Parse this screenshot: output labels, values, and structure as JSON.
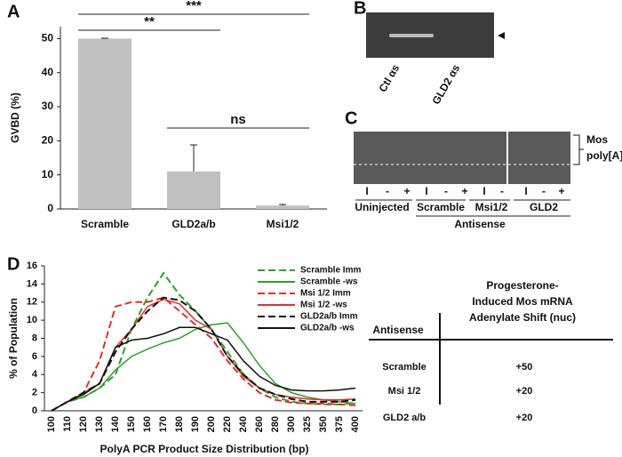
{
  "panel_labels": [
    "A",
    "B",
    "C",
    "D"
  ],
  "chart_data": [
    {
      "type": "bar",
      "ylabel": "GVBD (%)",
      "categories": [
        "Scramble",
        "GLD2a/b",
        "Msi1/2"
      ],
      "values": [
        50,
        11,
        1
      ],
      "errors": [
        0.1,
        7.8,
        0.3
      ],
      "color": "#c0c0c0",
      "ylim": [
        0,
        53.5
      ],
      "yticks": [
        0,
        10,
        20,
        30,
        40,
        50
      ],
      "annotations": [
        "**",
        "***",
        "ns"
      ]
    },
    {
      "type": "line",
      "ylabel": "% of Population",
      "xlabel": "PolyA PCR Product Size Distribution (bp)",
      "categories": [
        "100",
        "110",
        "120",
        "130",
        "140",
        "150",
        "160",
        "170",
        "180",
        "190",
        "200",
        "220",
        "240",
        "260",
        "280",
        "300",
        "325",
        "350",
        "375",
        "400"
      ],
      "ylim": [
        0,
        16
      ],
      "yticks": [
        0,
        2,
        4,
        6,
        8,
        10,
        12,
        14,
        16
      ],
      "series": [
        {
          "name": "Scramble Imm",
          "color": "#2ca02c",
          "dashed": true,
          "values": [
            0,
            1,
            1.5,
            2.5,
            4,
            9,
            12.5,
            15.2,
            12.8,
            11,
            9,
            6.5,
            4,
            2.5,
            1.5,
            1,
            0.8,
            0.7,
            0.7,
            0.9
          ]
        },
        {
          "name": "Scramble -ws",
          "color": "#2ca02c",
          "dashed": false,
          "values": [
            0,
            1,
            1.5,
            2.5,
            4.5,
            6,
            6.8,
            7.5,
            8,
            9,
            9.5,
            9.7,
            7.5,
            5,
            3,
            2,
            1.5,
            1.2,
            1,
            0.8
          ]
        },
        {
          "name": "Msi 1/2 Imm",
          "color": "#e0302a",
          "dashed": true,
          "values": [
            0,
            1,
            2,
            5.5,
            11.5,
            12,
            12,
            12.5,
            11,
            9.5,
            8,
            5.5,
            3.5,
            2,
            1.2,
            0.9,
            0.8,
            0.8,
            0.7,
            0.6
          ]
        },
        {
          "name": "Msi 1/2 -ws",
          "color": "#e0302a",
          "dashed": false,
          "values": [
            0,
            1,
            2,
            3,
            7,
            9,
            11.5,
            12.3,
            11.8,
            10,
            9,
            6,
            3.8,
            2.5,
            1.8,
            1.5,
            1.3,
            1.2,
            1.2,
            1.3
          ]
        },
        {
          "name": "GLD2a/b Imm",
          "color": "#111111",
          "dashed": true,
          "values": [
            0,
            1,
            2,
            3,
            6.5,
            9,
            11,
            12.5,
            12.2,
            11,
            9,
            6,
            4,
            2.5,
            1.8,
            1.3,
            1,
            1,
            1,
            1.2
          ]
        },
        {
          "name": "GLD2a/b -ws",
          "color": "#111111",
          "dashed": false,
          "values": [
            0,
            1,
            1.8,
            3,
            7,
            7.8,
            8,
            8.5,
            9.2,
            9.2,
            8.5,
            7.8,
            5.5,
            3.8,
            2.8,
            2.3,
            2.2,
            2.2,
            2.3,
            2.5
          ]
        }
      ]
    }
  ],
  "gel_b": {
    "lanes": [
      "Ctl αs",
      "GLD2 αs"
    ]
  },
  "gel_c": {
    "lanes": [
      "I",
      "-",
      "+",
      "I",
      "-",
      "+",
      "I",
      "-",
      "I",
      "-",
      "+"
    ],
    "groups": [
      "Uninjected",
      "Scramble",
      "Msi1/2",
      "GLD2"
    ],
    "xlabel": "Antisense",
    "band_label": [
      "Mos",
      "poly[A]"
    ]
  },
  "table": {
    "header": [
      "Antisense",
      "Progesterone-",
      "Induced Mos mRNA",
      "Adenylate Shift (nuc)"
    ],
    "rows": [
      [
        "Scramble",
        "+50"
      ],
      [
        "Msi 1/2",
        "+20"
      ],
      [
        "GLD2 a/b",
        "+20"
      ]
    ]
  }
}
